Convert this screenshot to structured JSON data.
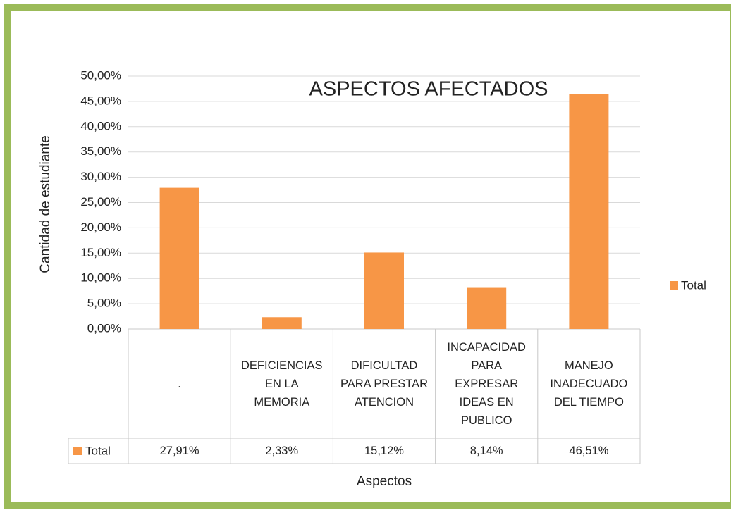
{
  "chart_data": {
    "type": "bar",
    "title": "ASPECTOS AFECTADOS",
    "ylabel": "Cantidad de estudiante",
    "xlabel": "Aspectos",
    "categories": [
      ".",
      "DEFICIENCIAS EN LA MEMORIA",
      "DIFICULTAD PARA PRESTAR ATENCION",
      "INCAPACIDAD PARA EXPRESAR IDEAS EN PUBLICO",
      "MANEJO INADECUADO DEL TIEMPO"
    ],
    "series": [
      {
        "name": "Total",
        "color": "#f79646",
        "values": [
          27.91,
          2.33,
          15.12,
          8.14,
          46.51
        ],
        "value_labels": [
          "27,91%",
          "2,33%",
          "15,12%",
          "8,14%",
          "46,51%"
        ]
      }
    ],
    "ylim": [
      0,
      50
    ],
    "yticks": [
      {
        "value": 0,
        "label": "0,00%"
      },
      {
        "value": 5,
        "label": "5,00%"
      },
      {
        "value": 10,
        "label": "10,00%"
      },
      {
        "value": 15,
        "label": "15,00%"
      },
      {
        "value": 20,
        "label": "20,00%"
      },
      {
        "value": 25,
        "label": "25,00%"
      },
      {
        "value": 30,
        "label": "30,00%"
      },
      {
        "value": 35,
        "label": "35,00%"
      },
      {
        "value": 40,
        "label": "40,00%"
      },
      {
        "value": 45,
        "label": "45,00%"
      },
      {
        "value": 50,
        "label": "50,00%"
      }
    ],
    "grid": true,
    "legend": "right"
  }
}
